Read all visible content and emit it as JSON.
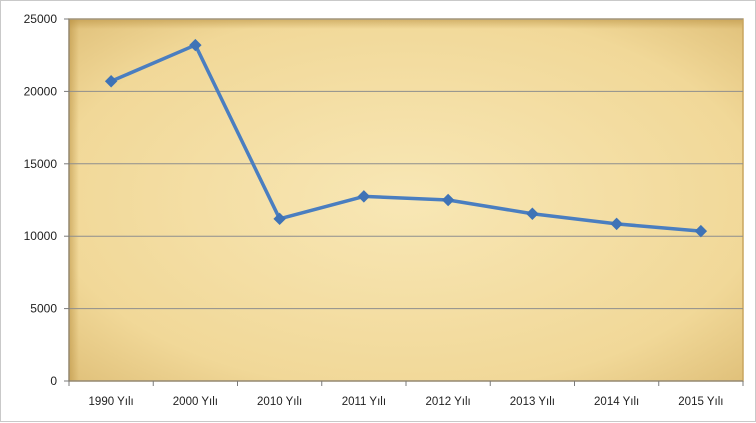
{
  "chart_data": {
    "type": "line",
    "categories": [
      "1990 Yılı",
      "2000 Yılı",
      "2010 Yılı",
      "2011 Yılı",
      "2012 Yılı",
      "2013 Yılı",
      "2014 Yılı",
      "2015 Yılı"
    ],
    "series": [
      {
        "values": [
          20700,
          23200,
          11200,
          12750,
          12500,
          11550,
          10850,
          10350
        ]
      }
    ],
    "ylim": [
      0,
      25000
    ],
    "yticks": [
      "0",
      "5000",
      "10000",
      "15000",
      "20000",
      "25000"
    ],
    "grid": true,
    "colors": {
      "line": "#4a7ec0",
      "marker": "#3f73b6",
      "plot_bg_light": "#f8e7b5",
      "plot_bg_mid": "#f1d898",
      "plot_bg_dark": "#dcbb73",
      "grid": "#8e8e8e"
    }
  }
}
